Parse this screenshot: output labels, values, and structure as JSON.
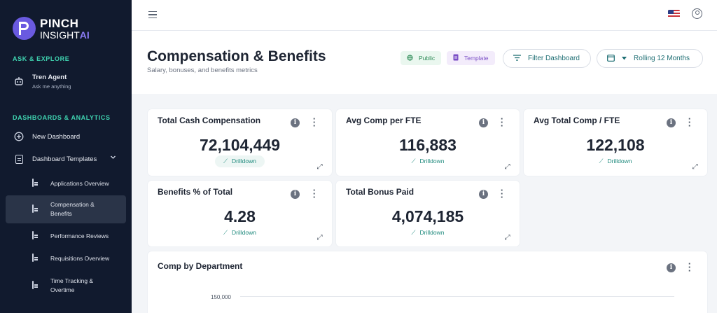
{
  "brand": {
    "line1": "PINCH",
    "line2": "INSIGHT",
    "line2_accent": "AI"
  },
  "sidebar": {
    "ask_section": "ASK & EXPLORE",
    "agent": {
      "label": "Tren Agent",
      "sub": "Ask me anything",
      "icon": "robot-icon"
    },
    "dash_section": "DASHBOARDS & ANALYTICS",
    "new_dashboard": {
      "label": "New Dashboard",
      "icon": "plus-circle-icon"
    },
    "templates": {
      "label": "Dashboard Templates",
      "icon": "document-icon",
      "chevron": "chevron-down-icon"
    },
    "items": [
      {
        "label": "Applications Overview"
      },
      {
        "label": "Compensation & Benefits",
        "active": true
      },
      {
        "label": "Performance Reviews"
      },
      {
        "label": "Requisitions Overview"
      },
      {
        "label": "Time Tracking & Overtime"
      }
    ]
  },
  "topbar": {
    "menu_icon": "hamburger-icon",
    "flag_icon": "us-flag-icon",
    "user_icon": "user-circle-icon"
  },
  "header": {
    "title": "Compensation & Benefits",
    "subtitle": "Salary, bonuses, and benefits metrics",
    "chip_public": "Public",
    "chip_template": "Template",
    "filter_label": "Filter Dashboard",
    "range_label": "Rolling 12 Months"
  },
  "cards": [
    {
      "title": "Total Cash Compensation",
      "value": "72,104,449",
      "drill": "Drilldown"
    },
    {
      "title": "Avg Comp per FTE",
      "value": "116,883",
      "drill": "Drilldown"
    },
    {
      "title": "Avg Total Comp / FTE",
      "value": "122,108",
      "drill": "Drilldown"
    },
    {
      "title": "Benefits % of Total",
      "value": "4.28",
      "drill": "Drilldown"
    },
    {
      "title": "Total Bonus Paid",
      "value": "4,074,185",
      "drill": "Drilldown"
    }
  ],
  "chart_card": {
    "title": "Comp by Department",
    "y_tick": "150,000"
  },
  "colors": {
    "sidebar_bg": "#111a2e",
    "accent_teal": "#3fd3b0",
    "brand_purple": "#6a5ae0"
  }
}
